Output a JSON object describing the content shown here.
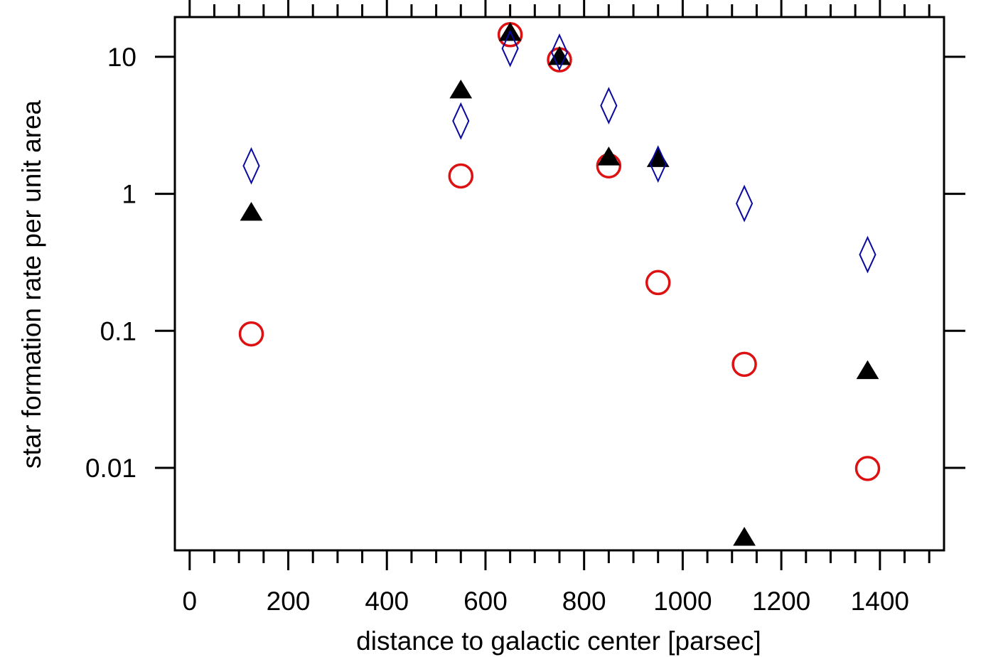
{
  "chart_data": {
    "type": "scatter",
    "title": "",
    "xlabel": "distance to galactic center [parsec]",
    "ylabel": "star formation rate per unit area",
    "xlim": [
      -30,
      1530
    ],
    "ylim": [
      0.0025,
      19.5
    ],
    "yscale": "log",
    "x_ticks": [
      0,
      200,
      400,
      600,
      800,
      1000,
      1200,
      1400
    ],
    "x_minor_step": 50,
    "y_ticks": [
      {
        "value": 10,
        "label": "10"
      },
      {
        "value": 1,
        "label": "1"
      },
      {
        "value": 0.1,
        "label": "0.1"
      },
      {
        "value": 0.01,
        "label": "0.01"
      }
    ],
    "grid": false,
    "legend": "none",
    "series": [
      {
        "marker": "circle-open",
        "color": "#dd1111",
        "x": [
          125,
          550,
          650,
          750,
          850,
          950,
          1125,
          1375
        ],
        "y": [
          0.095,
          1.35,
          14.5,
          9.5,
          1.6,
          0.225,
          0.057,
          0.0099
        ]
      },
      {
        "marker": "triangle-filled",
        "color": "#000000",
        "x": [
          125,
          550,
          650,
          750,
          850,
          950,
          1125,
          1375
        ],
        "y": [
          0.73,
          5.7,
          15.0,
          10.0,
          1.85,
          1.8,
          0.0031,
          0.051
        ]
      },
      {
        "marker": "diamond-open",
        "color": "#0a0aa0",
        "x": [
          125,
          550,
          650,
          750,
          850,
          950,
          1125,
          1375
        ],
        "y": [
          1.6,
          3.4,
          11.5,
          10.8,
          4.4,
          1.65,
          0.85,
          0.36
        ]
      }
    ]
  }
}
